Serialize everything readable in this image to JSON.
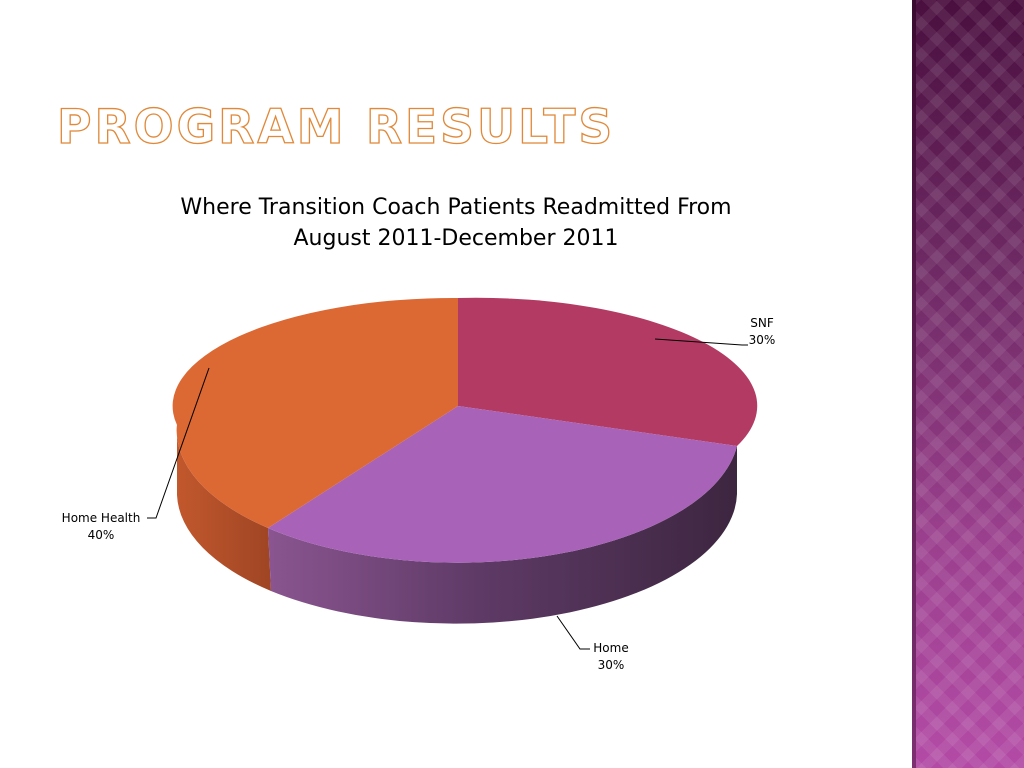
{
  "slide": {
    "title": "PROGRAM RESULTS"
  },
  "colors": {
    "sidebar_dark": "#4a0f3f",
    "sidebar_light": "#b34ba6",
    "title_outline": "#e0893a"
  },
  "chart_data": {
    "type": "pie",
    "style": "3d",
    "title_lines": [
      "Where Transition Coach Patients Readmitted From",
      "August 2011-December 2011"
    ],
    "slices": [
      {
        "name": "SNF",
        "value": 30,
        "label": "30%",
        "color": "#b33b63",
        "side_color": "#7d2844"
      },
      {
        "name": "Home",
        "value": 30,
        "label": "30%",
        "color": "#a863b9",
        "side_color": "#4a2b4c"
      },
      {
        "name": "Home Health",
        "value": 40,
        "label": "40%",
        "color": "#dc6834",
        "side_color": "#b4512a"
      }
    ],
    "legend": "none",
    "data_labels": "outside with leader lines"
  }
}
